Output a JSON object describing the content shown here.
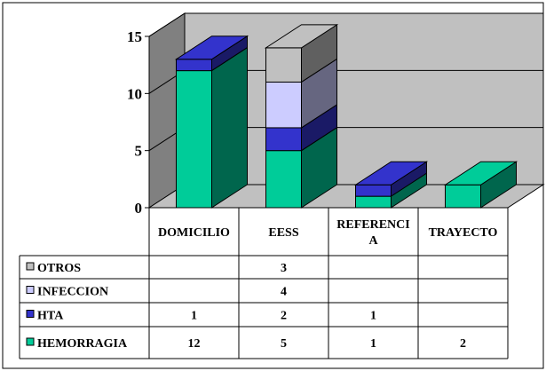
{
  "chart_data": {
    "type": "bar",
    "stacked": true,
    "three_d": true,
    "categories": [
      "DOMICILIO",
      "EESS",
      "REFERENCIA",
      "TRAYECTO"
    ],
    "category_label_lines": [
      [
        "DOMICILIO"
      ],
      [
        "EESS"
      ],
      [
        "REFERENCI",
        "A"
      ],
      [
        "TRAYECTO"
      ]
    ],
    "series": [
      {
        "name": "HEMORRAGIA",
        "values": [
          12,
          5,
          1,
          2
        ],
        "labels": [
          "12",
          "5",
          "1",
          "2"
        ],
        "color": "#00CC99"
      },
      {
        "name": "HTA",
        "values": [
          1,
          2,
          1,
          0
        ],
        "labels": [
          "1",
          "2",
          "1",
          ""
        ],
        "color": "#3333CC"
      },
      {
        "name": "INFECCION",
        "values": [
          0,
          4,
          0,
          0
        ],
        "labels": [
          "",
          "4",
          "",
          ""
        ],
        "color": "#CCCCFF"
      },
      {
        "name": "OTROS",
        "values": [
          0,
          3,
          0,
          0
        ],
        "labels": [
          "",
          "3",
          "",
          ""
        ],
        "color": "#C0C0C0"
      }
    ],
    "table_row_order": [
      "OTROS",
      "INFECCION",
      "HTA",
      "HEMORRAGIA"
    ],
    "yticks": [
      "0",
      "5",
      "10",
      "15"
    ],
    "ylim": [
      0,
      15
    ],
    "grid": true,
    "legend": "data-table-below"
  }
}
